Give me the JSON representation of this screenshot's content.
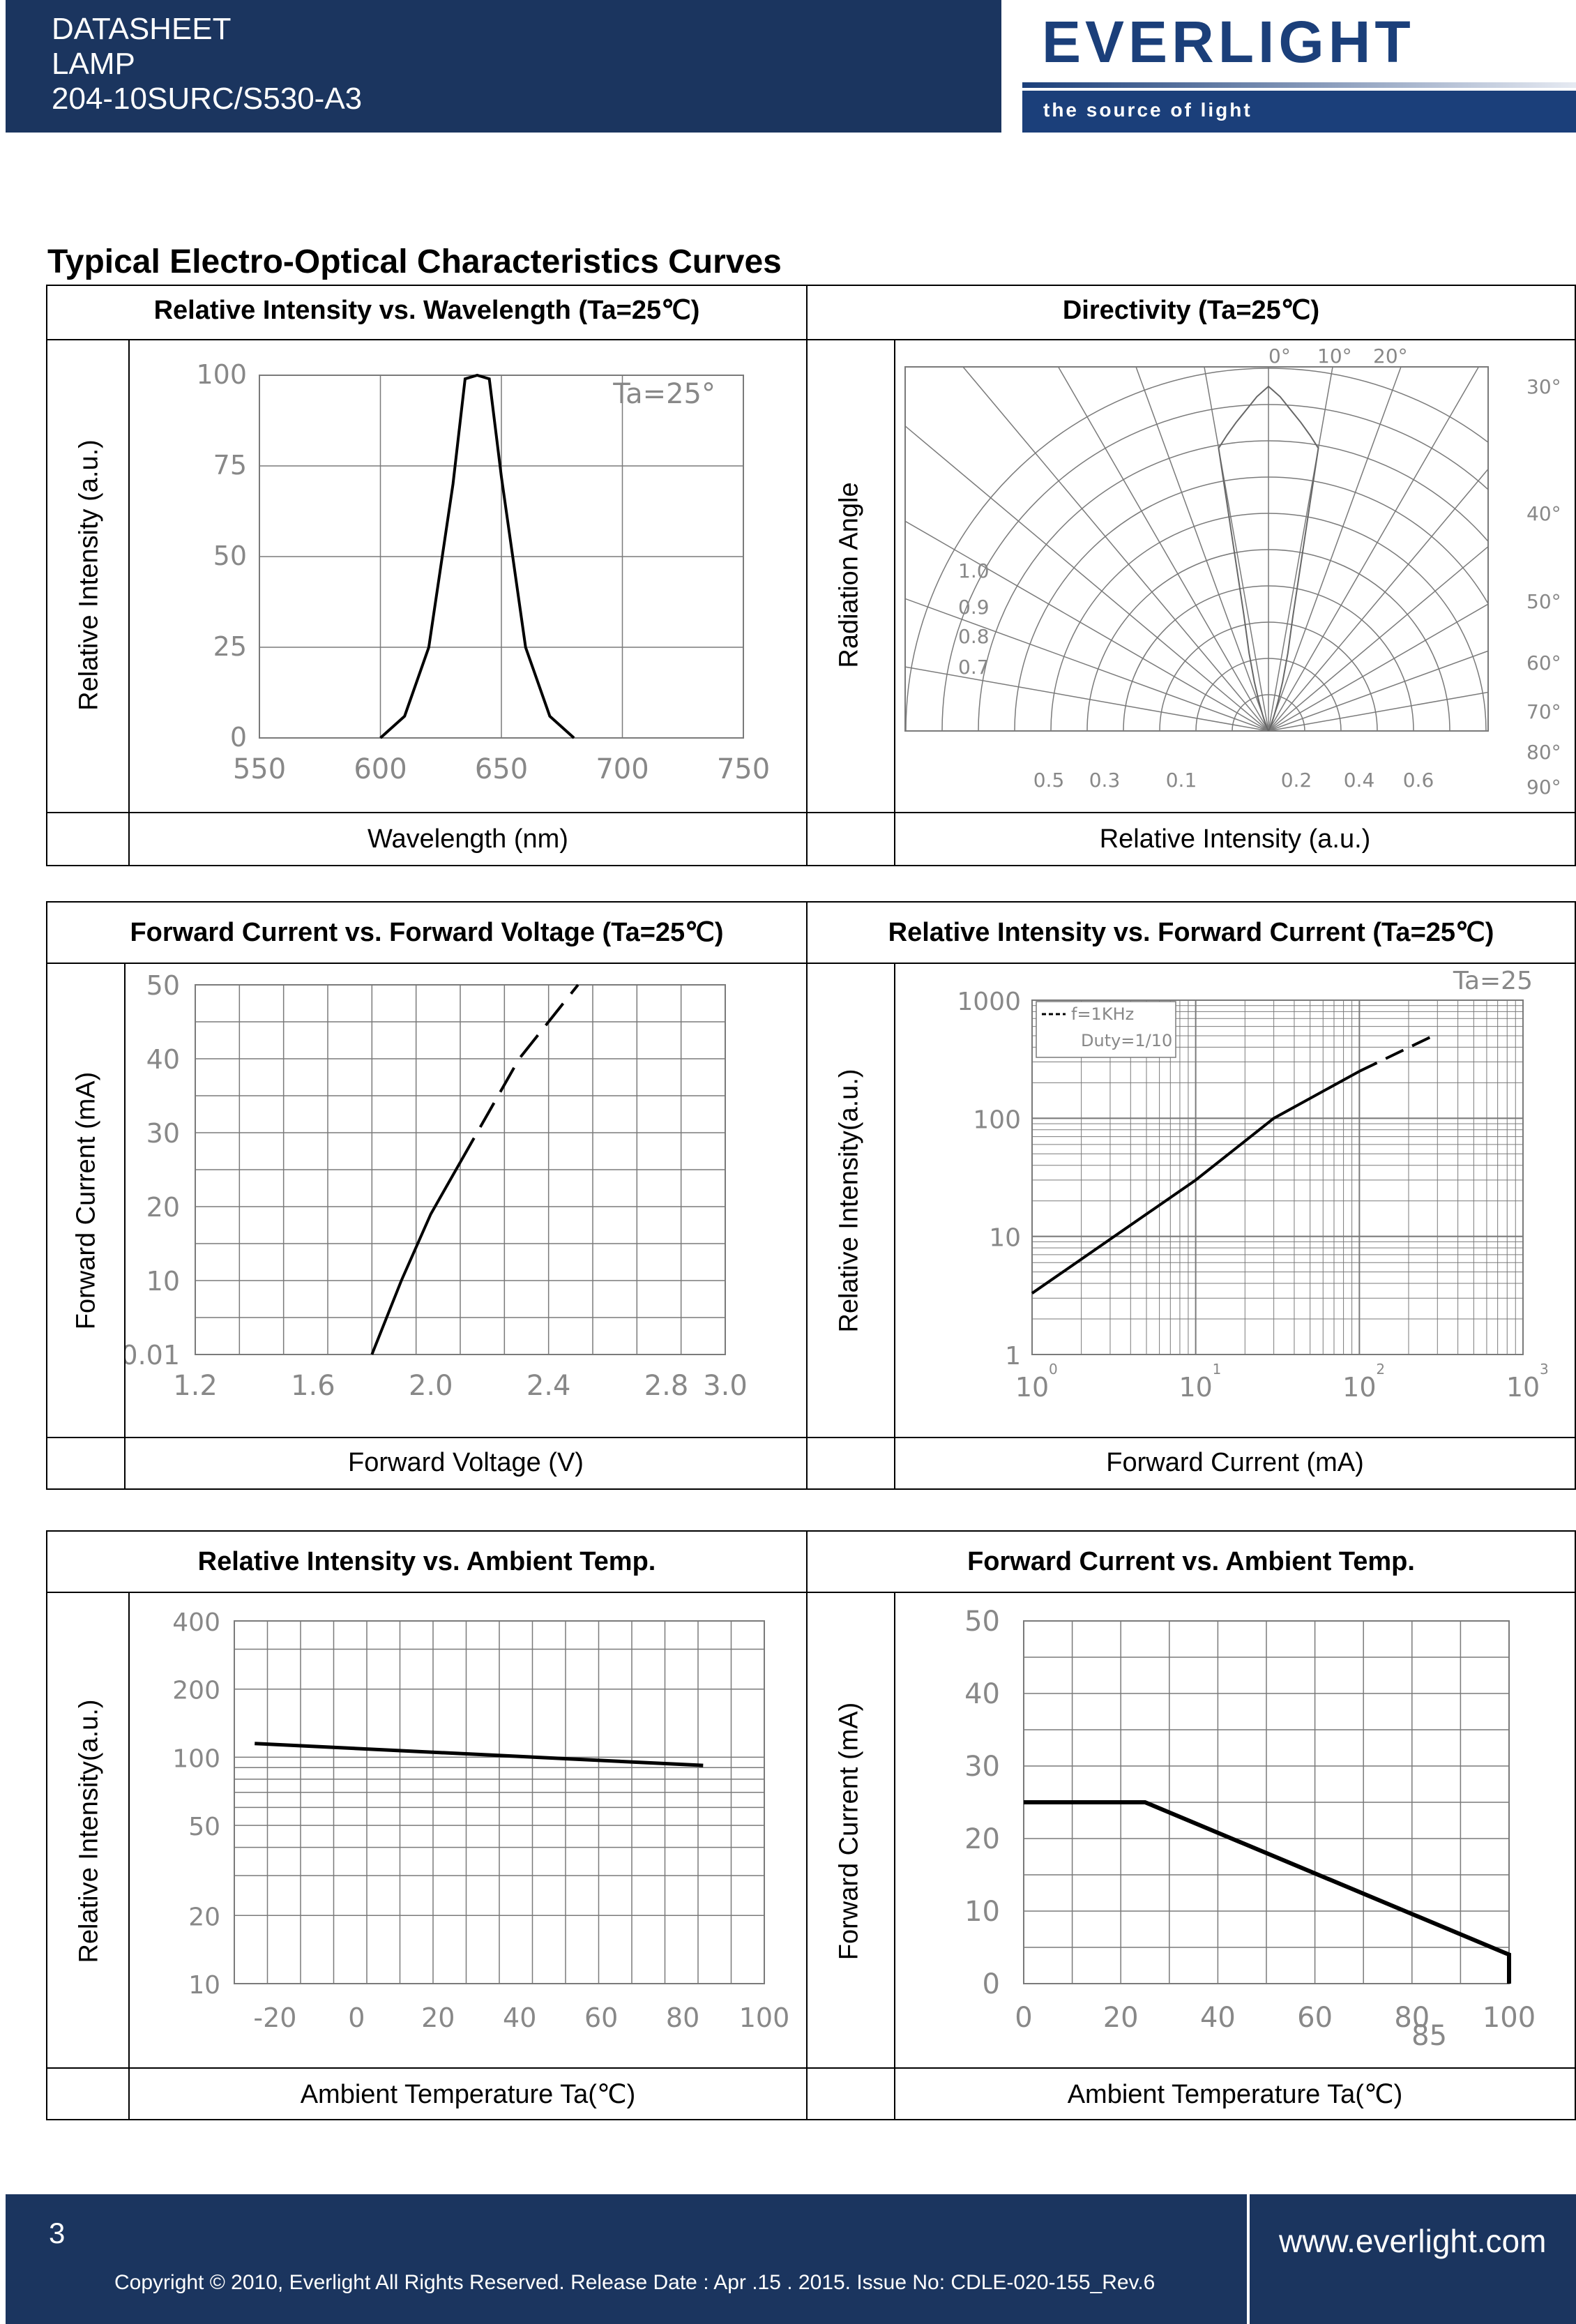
{
  "header": {
    "line1": "DATASHEET",
    "line2": "LAMP",
    "line3": "204-10SURC/S530-A3",
    "logo": "EVERLIGHT",
    "tagline": "the source of light"
  },
  "section_title": "Typical Electro-Optical Characteristics Curves",
  "panels": {
    "p1": {
      "title": "Relative Intensity vs. Wavelength (Ta=25℃)",
      "ylabel": "Relative Intensity (a.u.)",
      "xlabel": "Wavelength (nm)",
      "annot": "Ta=25°"
    },
    "p2": {
      "title": "Directivity (Ta=25℃)",
      "ylabel": "Radiation Angle",
      "xlabel": "Relative Intensity (a.u.)"
    },
    "p3": {
      "title": "Forward Current vs. Forward Voltage (Ta=25℃)",
      "ylabel": "Forward Current (mA)",
      "xlabel": "Forward Voltage (V)"
    },
    "p4": {
      "title": "Relative Intensity vs. Forward Current (Ta=25℃)",
      "ylabel": "Relative Intensity(a.u.)",
      "xlabel": "Forward Current (mA)",
      "legend1": "f=1KHz",
      "legend2": "Duty=1/10",
      "annot": "Ta=25"
    },
    "p5": {
      "title": "Relative Intensity vs. Ambient Temp.",
      "ylabel": "Relative Intensity(a.u.)",
      "xlabel": "Ambient Temperature Ta(℃)"
    },
    "p6": {
      "title": "Forward Current vs. Ambient Temp.",
      "ylabel": "Forward Current (mA)",
      "xlabel": "Ambient Temperature Ta(℃)"
    }
  },
  "chart_data": [
    {
      "type": "line",
      "id": "p1",
      "x": [
        600,
        610,
        620,
        630,
        635,
        640,
        645,
        650,
        660,
        670,
        680
      ],
      "y": [
        0,
        6,
        25,
        70,
        99,
        100,
        99,
        72,
        25,
        6,
        0
      ],
      "xticks": [
        "550",
        "600",
        "650",
        "700",
        "750"
      ],
      "yticks": [
        "0",
        "25",
        "50",
        "75",
        "100"
      ],
      "xlim": [
        550,
        750
      ],
      "ylim": [
        0,
        100
      ]
    },
    {
      "type": "polar",
      "id": "p2",
      "angle_ticks": [
        "0°",
        "10°",
        "20°",
        "30°",
        "40°",
        "50°",
        "60°",
        "70°",
        "80°",
        "90°"
      ],
      "radial_ticks_left": [
        "1.0",
        "0.9",
        "0.8",
        "0.7"
      ],
      "bottom_ticks_left": [
        "0.5",
        "0.3",
        "0.1"
      ],
      "bottom_ticks_right": [
        "0.2",
        "0.4",
        "0.6"
      ]
    },
    {
      "type": "line",
      "id": "p3",
      "x": [
        1.8,
        1.9,
        2.0,
        2.1,
        2.2,
        2.3,
        2.4,
        2.5
      ],
      "y": [
        0.01,
        10,
        19,
        26,
        33,
        40,
        45,
        50
      ],
      "xticks": [
        "1.2",
        "1.6",
        "2.0",
        "2.4",
        "2.8",
        "3.0"
      ],
      "yticks": [
        "0.01",
        "10",
        "20",
        "30",
        "40",
        "50"
      ],
      "xlim": [
        1.2,
        3.0
      ],
      "ylim": [
        0,
        50
      ]
    },
    {
      "type": "line",
      "id": "p4",
      "x": [
        1,
        10,
        30,
        100,
        300
      ],
      "y": [
        3.3,
        30,
        100,
        250,
        520
      ],
      "xticks": [
        "10",
        "10",
        "10",
        "10"
      ],
      "xexp": [
        "0",
        "1",
        "2",
        "3"
      ],
      "yticks": [
        "1",
        "10",
        "100",
        "1000"
      ],
      "xscale": "log",
      "yscale": "log"
    },
    {
      "type": "line",
      "id": "p5",
      "x": [
        -25,
        85
      ],
      "y": [
        115,
        92
      ],
      "xticks": [
        "-20",
        "0",
        "20",
        "40",
        "60",
        "80",
        "100"
      ],
      "yticks": [
        "10",
        "20",
        "50",
        "100",
        "200",
        "400"
      ],
      "yscale": "log"
    },
    {
      "type": "line",
      "id": "p6",
      "x": [
        0,
        25,
        100,
        100
      ],
      "y": [
        25,
        25,
        4,
        0
      ],
      "xticks": [
        "0",
        "20",
        "40",
        "60",
        "80",
        "100"
      ],
      "xextra": "85",
      "yticks": [
        "0",
        "10",
        "20",
        "30",
        "40",
        "50"
      ],
      "xlim": [
        0,
        100
      ],
      "ylim": [
        0,
        50
      ]
    }
  ],
  "footer": {
    "page": "3",
    "copyright": "Copyright © 2010, Everlight All Rights Reserved. Release Date : Apr .15 . 2015. Issue No: CDLE-020-155_Rev.6",
    "url": "www.everlight.com"
  },
  "colors": {
    "navy": "#1b355f",
    "logo_blue": "#1b3f7a",
    "grid": "#7a7a7a",
    "tick": "#888888"
  }
}
